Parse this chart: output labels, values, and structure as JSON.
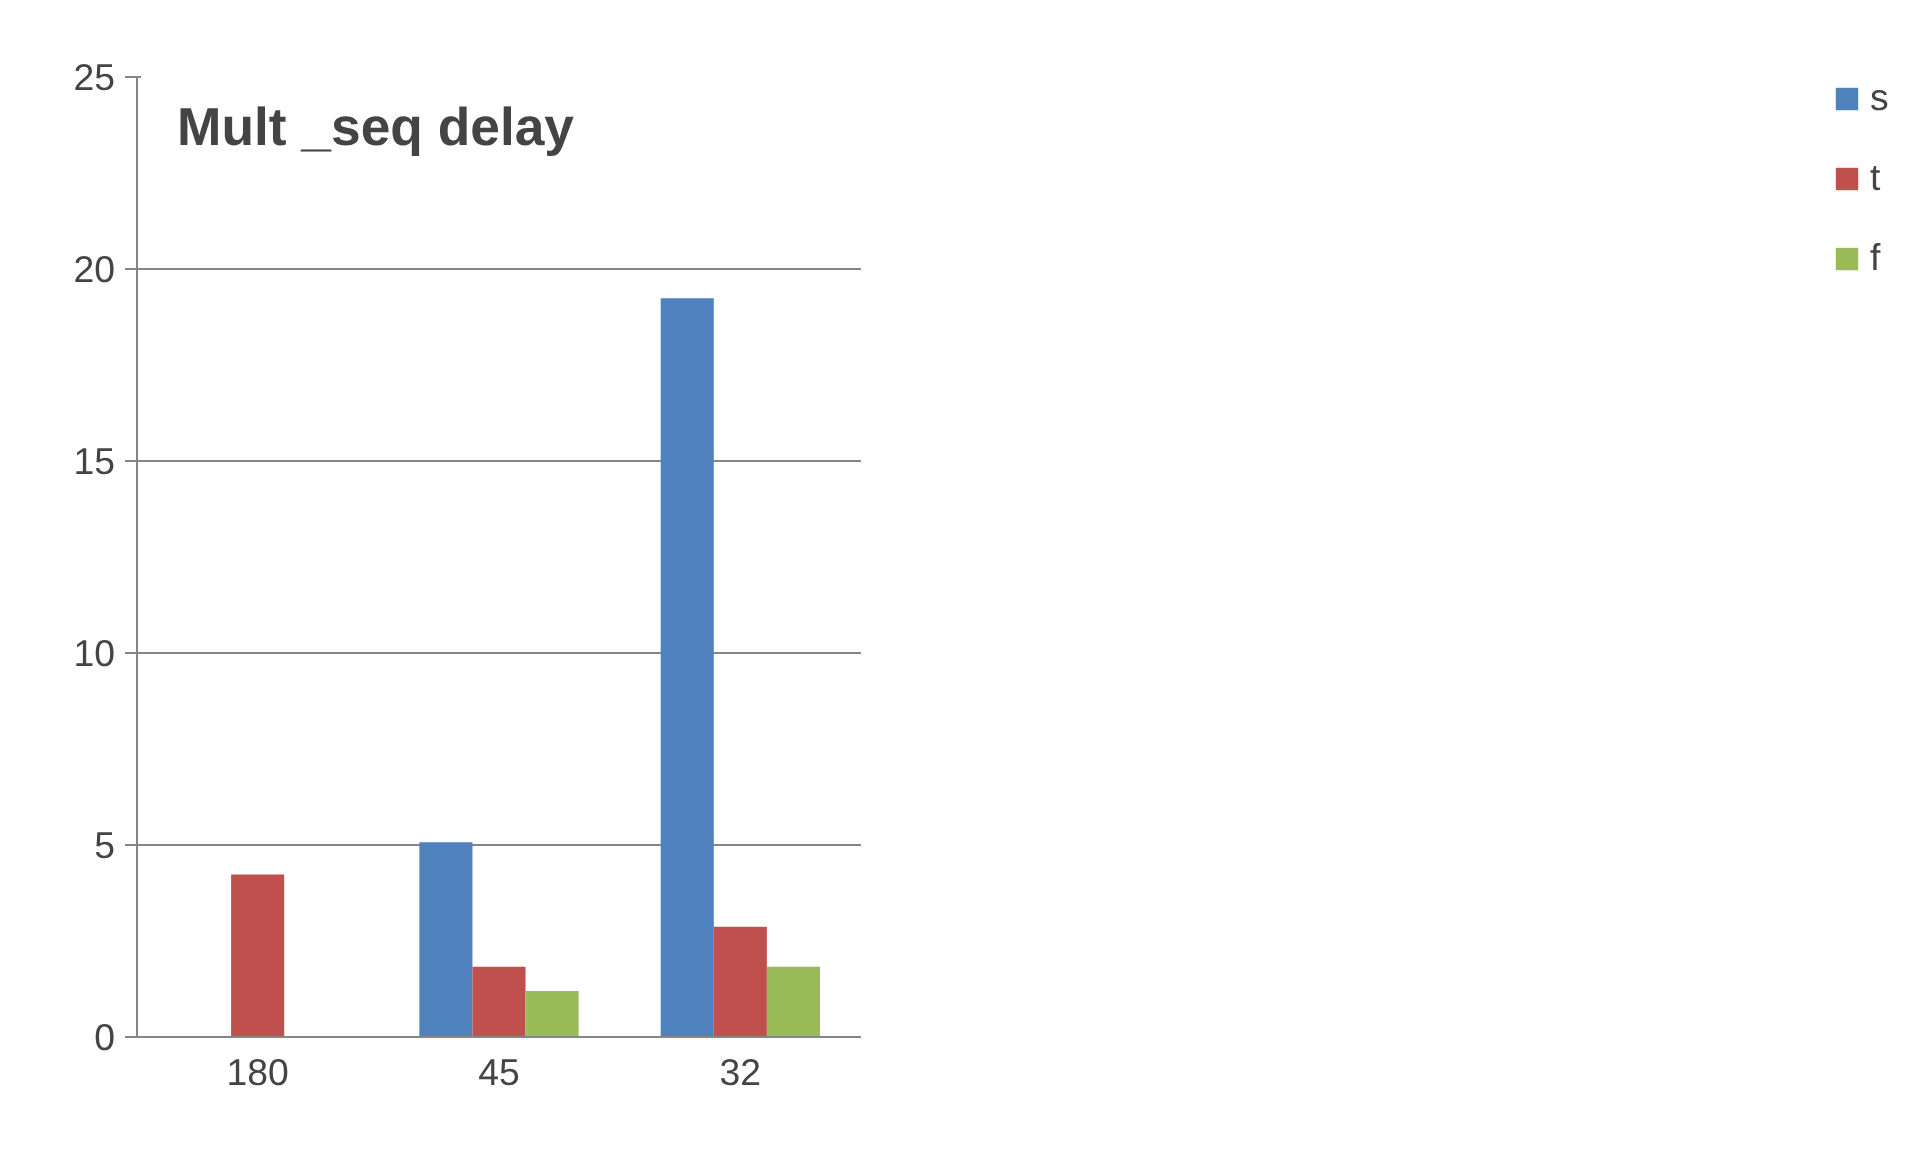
{
  "chart_data": {
    "type": "bar",
    "title": "Mult _seq delay",
    "categories": [
      "180",
      "45",
      "32"
    ],
    "series": [
      {
        "name": "s",
        "color": "#4f81bd",
        "values": [
          0,
          5.07,
          19.24
        ]
      },
      {
        "name": "t",
        "color": "#c0504d",
        "values": [
          4.23,
          1.83,
          2.87
        ]
      },
      {
        "name": "f",
        "color": "#9bbb59",
        "values": [
          0,
          1.2,
          1.83
        ]
      }
    ],
    "ylim": [
      0,
      25
    ],
    "yticks": [
      0,
      5,
      10,
      15,
      20,
      25
    ],
    "grid": "y",
    "legend": "right"
  }
}
